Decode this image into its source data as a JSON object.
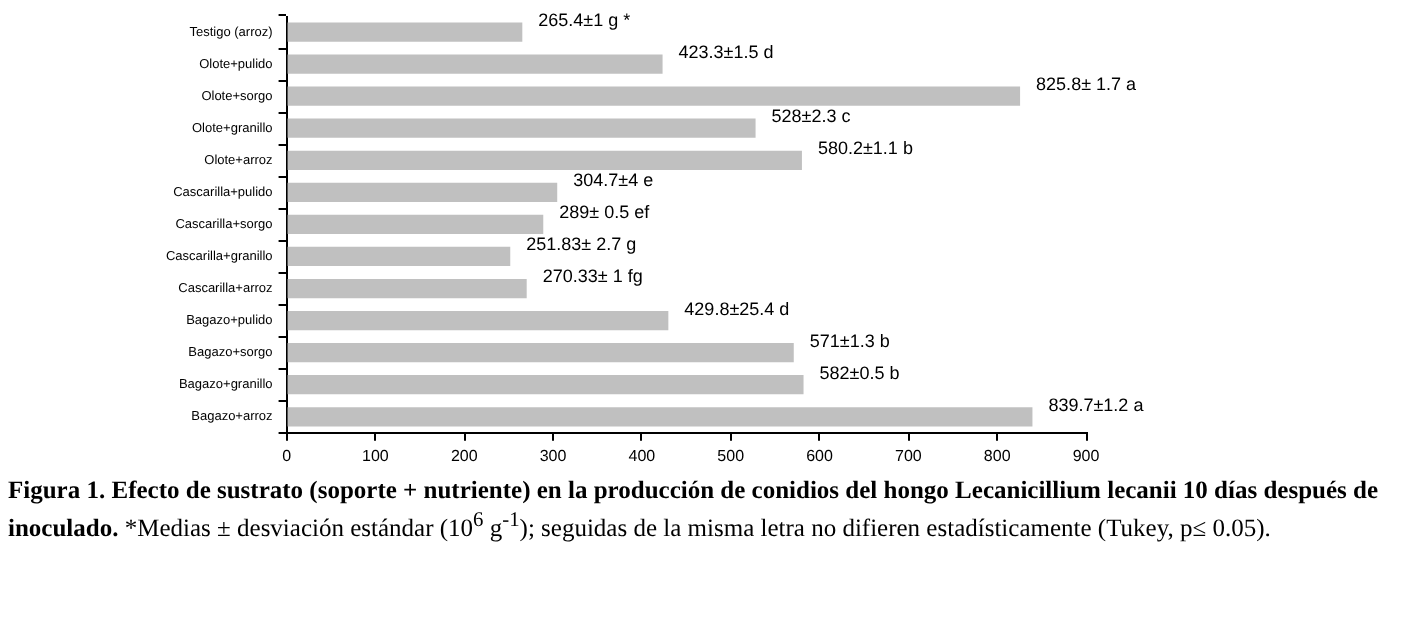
{
  "chart_data": {
    "type": "bar",
    "orientation": "horizontal",
    "title": "Figura 1. Efecto de sustrato (soporte + nutriente) en la producción de conidios del hongo Lecanicillium lecanii 10 días después de inoculado.",
    "annotations": [
      "*Medias ± desviación estándar (10$^{6}$ g$^{-1}$); seguidas de la misma letra no difieren estadísticamente (Tukey, p≤ 0.05)."
    ],
    "categories": [
      "Testigo (arroz)",
      "Olote+pulido",
      "Olote+sorgo",
      "Olote+granillo",
      "Olote+arroz",
      "Cascarilla+pulido",
      "Cascarilla+sorgo",
      "Cascarilla+granillo",
      "Cascarilla+arroz",
      "Bagazo+pulido",
      "Bagazo+sorgo",
      "Bagazo+granillo",
      "Bagazo+arroz"
    ],
    "values": [
      265.4,
      423.3,
      825.8,
      528,
      580.2,
      304.7,
      289,
      251.83,
      270.33,
      429.8,
      571,
      582,
      839.7
    ],
    "value_labels": [
      "265.4±1 g *",
      "423.3±1.5 d",
      "825.8± 1.7 a",
      "528±2.3 c",
      "580.2±1.1 b",
      "304.7±4 e",
      "289± 0.5 ef",
      "251.83± 2.7 g",
      "270.33± 1 fg",
      "429.8±25.4 d",
      "571±1.3 b",
      "582±0.5 b",
      "839.7±1.2 a"
    ],
    "color": "#c0c0c0",
    "xlim": [
      0,
      900
    ],
    "xticks": [
      0,
      100,
      200,
      300,
      400,
      500,
      600,
      700,
      800,
      900
    ],
    "grid": false,
    "legend": false
  }
}
